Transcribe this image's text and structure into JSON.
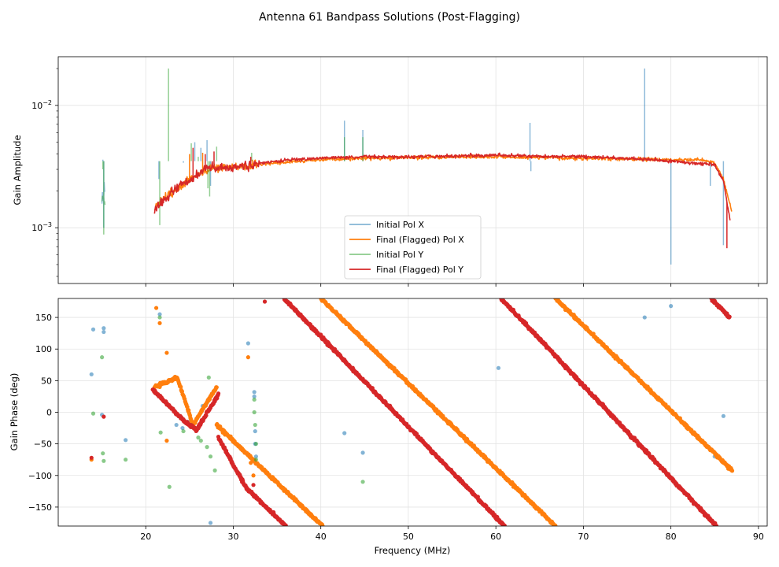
{
  "chart_data": {
    "title": "Antenna 61 Bandpass Solutions (Post-Flagging)",
    "panels": [
      {
        "type": "line",
        "ylabel": "Gain Amplitude",
        "yscale": "log",
        "ylim": [
          0.00035,
          0.025
        ],
        "xlim": [
          10,
          91
        ],
        "yticks": [
          {
            "value": 0.01,
            "label": "10",
            "exp": "−2"
          },
          {
            "value": 0.001,
            "label": "10",
            "exp": "−3"
          }
        ],
        "grid": true,
        "legend": {
          "placement": "lower-center",
          "entries": [
            "Initial Pol X",
            "Final (Flagged) Pol X",
            "Initial Pol Y",
            "Final (Flagged) Pol Y"
          ]
        },
        "series": [
          {
            "name": "Initial Pol X",
            "color": "#1f77b4",
            "alpha": 0.5,
            "x_start": 15.0,
            "x_end": 15.4,
            "baseline": [
              [
                15.0,
                0.0019
              ],
              [
                15.4,
                0.0019
              ]
            ],
            "spikes": [
              [
                15.1,
                0.0036
              ],
              [
                15.2,
                0.001
              ],
              [
                21.5,
                0.0025
              ],
              [
                24.3,
                0.0034
              ],
              [
                25.6,
                0.005
              ],
              [
                26.3,
                0.0045
              ],
              [
                27.0,
                0.0052
              ],
              [
                27.4,
                0.0022
              ],
              [
                42.7,
                0.0075
              ],
              [
                44.8,
                0.0063
              ],
              [
                63.9,
                0.0072
              ],
              [
                64.0,
                0.0029
              ],
              [
                77.0,
                0.02
              ],
              [
                80.0,
                0.0005
              ],
              [
                84.5,
                0.0022
              ],
              [
                86.0,
                0.00072
              ]
            ]
          },
          {
            "name": "Final (Flagged) Pol X",
            "color": "#ff7f0e",
            "alpha": 1,
            "x_start": 21.0,
            "x_end": 87.0,
            "baseline": [
              [
                21.0,
                0.00145
              ],
              [
                22.0,
                0.0017
              ],
              [
                24.0,
                0.0022
              ],
              [
                25.5,
                0.0026
              ],
              [
                27.0,
                0.003
              ],
              [
                28.5,
                0.0031
              ],
              [
                30.0,
                0.0031
              ],
              [
                32.0,
                0.0032
              ],
              [
                35.0,
                0.0034
              ],
              [
                40.0,
                0.0036
              ],
              [
                45.0,
                0.0037
              ],
              [
                50.0,
                0.00375
              ],
              [
                60.0,
                0.0038
              ],
              [
                70.0,
                0.0037
              ],
              [
                78.0,
                0.0036
              ],
              [
                83.0,
                0.0036
              ],
              [
                85.0,
                0.0034
              ],
              [
                86.0,
                0.0025
              ],
              [
                87.0,
                0.0013
              ]
            ],
            "spikes": [
              [
                25.0,
                0.004
              ],
              [
                26.5,
                0.0041
              ],
              [
                27.4,
                0.0033
              ],
              [
                32.2,
                0.0036
              ]
            ]
          },
          {
            "name": "Initial Pol Y",
            "color": "#2ca02c",
            "alpha": 0.5,
            "x_start": 15.0,
            "x_end": 15.4,
            "baseline": [
              [
                15.0,
                0.0017
              ],
              [
                15.4,
                0.0017
              ]
            ],
            "spikes": [
              [
                15.1,
                0.003
              ],
              [
                15.2,
                0.00088
              ],
              [
                21.6,
                0.00105
              ],
              [
                22.6,
                0.02
              ],
              [
                25.2,
                0.0049
              ],
              [
                26.0,
                0.0038
              ],
              [
                27.1,
                0.0021
              ],
              [
                27.3,
                0.0018
              ],
              [
                28.1,
                0.0046
              ],
              [
                32.1,
                0.0041
              ],
              [
                42.7,
                0.0055
              ],
              [
                44.8,
                0.0055
              ]
            ]
          },
          {
            "name": "Final (Flagged) Pol Y",
            "color": "#d62728",
            "alpha": 1,
            "x_start": 21.0,
            "x_end": 86.8,
            "baseline": [
              [
                21.0,
                0.0014
              ],
              [
                22.0,
                0.0017
              ],
              [
                24.0,
                0.0022
              ],
              [
                25.5,
                0.0026
              ],
              [
                27.0,
                0.0031
              ],
              [
                28.5,
                0.0031
              ],
              [
                30.0,
                0.0031
              ],
              [
                32.0,
                0.0033
              ],
              [
                35.0,
                0.0035
              ],
              [
                40.0,
                0.0037
              ],
              [
                45.0,
                0.0038
              ],
              [
                50.0,
                0.0038
              ],
              [
                60.0,
                0.0039
              ],
              [
                70.0,
                0.0038
              ],
              [
                78.0,
                0.0036
              ],
              [
                82.0,
                0.0034
              ],
              [
                85.0,
                0.0033
              ],
              [
                86.0,
                0.0024
              ],
              [
                86.8,
                0.0011
              ]
            ],
            "spikes": [
              [
                25.4,
                0.0045
              ],
              [
                26.8,
                0.004
              ],
              [
                27.8,
                0.0042
              ],
              [
                32.0,
                0.0038
              ],
              [
                86.4,
                0.00068
              ]
            ]
          }
        ]
      },
      {
        "type": "scatter",
        "ylabel": "Gain Phase (deg)",
        "xlabel": "Frequency (MHz)",
        "ylim": [
          -180,
          180
        ],
        "xlim": [
          10,
          91
        ],
        "xticks": [
          20,
          30,
          40,
          50,
          60,
          70,
          80,
          90
        ],
        "yticks": [
          -150,
          -100,
          -50,
          0,
          50,
          100,
          150
        ],
        "grid": true,
        "series": [
          {
            "name": "Initial Pol X",
            "color": "#1f77b4",
            "alpha": 0.55,
            "points": [
              [
                13.8,
                60
              ],
              [
                14.0,
                131
              ],
              [
                15.0,
                -4
              ],
              [
                15.2,
                133
              ],
              [
                15.2,
                127
              ],
              [
                17.7,
                -44
              ],
              [
                21.6,
                155
              ],
              [
                23.5,
                -20
              ],
              [
                24.2,
                -25
              ],
              [
                24.8,
                -15
              ],
              [
                26.5,
                10
              ],
              [
                27.0,
                15
              ],
              [
                27.4,
                -175
              ],
              [
                27.6,
                30
              ],
              [
                31.7,
                109
              ],
              [
                32.4,
                32
              ],
              [
                32.4,
                25
              ],
              [
                32.5,
                -30
              ],
              [
                32.5,
                -50
              ],
              [
                32.6,
                -70
              ],
              [
                42.7,
                -33
              ],
              [
                44.8,
                -64
              ],
              [
                60.3,
                70
              ],
              [
                77.0,
                150
              ],
              [
                80.0,
                168
              ],
              [
                85.0,
                -70
              ],
              [
                86.0,
                -6
              ]
            ]
          },
          {
            "name": "Final (Flagged) Pol X",
            "color": "#ff7f0e",
            "alpha": 1,
            "segments": [
              {
                "x_start": 21.0,
                "x_end": 23.6,
                "y_start": 40,
                "y_end": 55
              },
              {
                "x_start": 23.6,
                "x_end": 25.4,
                "y_start": 55,
                "y_end": -20
              },
              {
                "x_start": 25.4,
                "x_end": 28.1,
                "y_start": -20,
                "y_end": 40
              },
              {
                "x_start": 28.1,
                "x_end": 40.2,
                "y_start": -20,
                "y_end": -180
              },
              {
                "x_start": 40.0,
                "x_end": 66.8,
                "y_start": 180,
                "y_end": -180
              },
              {
                "x_start": 66.8,
                "x_end": 87.0,
                "y_start": 180,
                "y_end": -92
              }
            ],
            "points": [
              [
                13.8,
                -75
              ],
              [
                21.2,
                165
              ],
              [
                21.6,
                141
              ],
              [
                21.6,
                40
              ],
              [
                22.4,
                94
              ],
              [
                22.4,
                -45
              ],
              [
                31.7,
                87
              ],
              [
                32.0,
                -80
              ],
              [
                32.3,
                -100
              ]
            ]
          },
          {
            "name": "Initial Pol Y",
            "color": "#2ca02c",
            "alpha": 0.55,
            "points": [
              [
                14.0,
                -2
              ],
              [
                15.0,
                87
              ],
              [
                15.1,
                -65
              ],
              [
                15.2,
                -77
              ],
              [
                17.7,
                -75
              ],
              [
                21.6,
                150
              ],
              [
                21.7,
                -32
              ],
              [
                22.7,
                -118
              ],
              [
                24.3,
                -30
              ],
              [
                25.2,
                -20
              ],
              [
                26.0,
                -40
              ],
              [
                26.3,
                -45
              ],
              [
                27.0,
                -55
              ],
              [
                27.2,
                55
              ],
              [
                27.4,
                -70
              ],
              [
                27.9,
                -92
              ],
              [
                32.4,
                20
              ],
              [
                32.4,
                0
              ],
              [
                32.5,
                -20
              ],
              [
                32.6,
                -50
              ],
              [
                32.6,
                -75
              ],
              [
                44.8,
                -110
              ]
            ]
          },
          {
            "name": "Final (Flagged) Pol Y",
            "color": "#d62728",
            "alpha": 1,
            "segments": [
              {
                "x_start": 20.8,
                "x_end": 24.5,
                "y_start": 36,
                "y_end": -15
              },
              {
                "x_start": 24.5,
                "x_end": 25.8,
                "y_start": -15,
                "y_end": -28
              },
              {
                "x_start": 25.8,
                "x_end": 28.3,
                "y_start": -28,
                "y_end": 28
              },
              {
                "x_start": 28.3,
                "x_end": 31.5,
                "y_start": -40,
                "y_end": -120
              },
              {
                "x_start": 31.5,
                "x_end": 36.0,
                "y_start": -120,
                "y_end": -180
              },
              {
                "x_start": 35.8,
                "x_end": 61.0,
                "y_start": 180,
                "y_end": -180
              },
              {
                "x_start": 60.6,
                "x_end": 85.2,
                "y_start": 180,
                "y_end": -180
              },
              {
                "x_start": 84.6,
                "x_end": 86.7,
                "y_start": 180,
                "y_end": 150
              }
            ],
            "points": [
              [
                13.8,
                -72
              ],
              [
                15.2,
                -7
              ],
              [
                32.3,
                -115
              ],
              [
                33.6,
                175
              ]
            ]
          }
        ]
      }
    ]
  }
}
